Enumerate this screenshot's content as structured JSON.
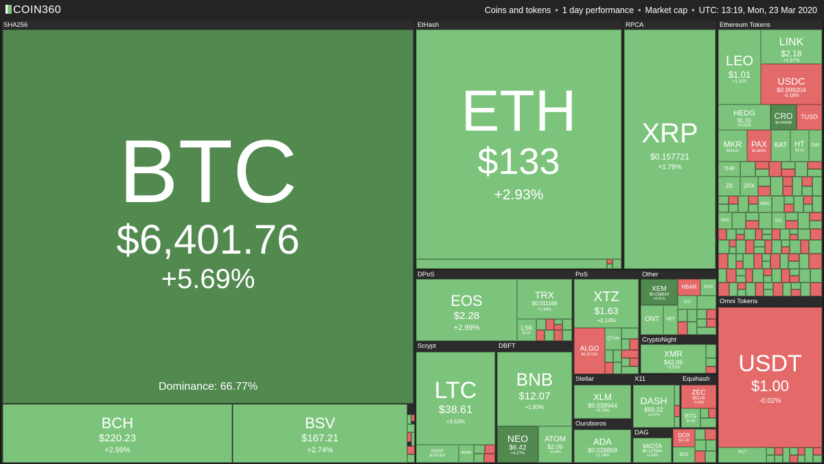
{
  "header": {
    "logo": "COIN360",
    "dataset": "Coins and tokens",
    "period": "1 day performance",
    "metric": "Market cap",
    "time": "UTC: 13:19, Mon, 23 Mar 2020"
  },
  "groups": {
    "sha256": "SHA256",
    "ethash": "EtHash",
    "rpca": "RPCA",
    "ethereum_tokens": "Ethereum Tokens",
    "dpos": "DPoS",
    "pos": "PoS",
    "other": "Other",
    "cryptonight": "CryptoNight",
    "scrypt": "Scrypt",
    "dbft": "DBFT",
    "stellar": "Stellar",
    "x11": "X11",
    "equihash": "Equihash",
    "ouroboros": "Ouroboros",
    "dag": "DAG",
    "omni_tokens": "Omni Tokens"
  },
  "coins": {
    "btc": {
      "symbol": "BTC",
      "price": "$6,401.76",
      "change": "+5.69%",
      "dominance": "Dominance: 66.77%"
    },
    "bch": {
      "symbol": "BCH",
      "price": "$220.23",
      "change": "+2.99%"
    },
    "bsv": {
      "symbol": "BSV",
      "price": "$167.21",
      "change": "+2.74%"
    },
    "eth": {
      "symbol": "ETH",
      "price": "$133",
      "change": "+2.93%"
    },
    "xrp": {
      "symbol": "XRP",
      "price": "$0.157721",
      "change": "+1.79%"
    },
    "leo": {
      "symbol": "LEO",
      "price": "$1.01",
      "change": "+1.11%"
    },
    "link": {
      "symbol": "LINK",
      "price": "$2.18",
      "change": "+1.57%"
    },
    "usdc": {
      "symbol": "USDC",
      "price": "$0.999204",
      "change": "-0.18%"
    },
    "hedg": {
      "symbol": "HEDG",
      "price": "$1.55",
      "change": "+4.02%"
    },
    "cro": {
      "symbol": "CRO",
      "price": "$0.040598",
      "change": ""
    },
    "tusd": {
      "symbol": "TUSD",
      "price": "",
      "change": ""
    },
    "mkr": {
      "symbol": "MKR",
      "price": "$304.62",
      "change": ""
    },
    "pax": {
      "symbol": "PAX",
      "price": "$0.99541",
      "change": ""
    },
    "bat": {
      "symbol": "BAT",
      "price": "",
      "change": ""
    },
    "ht": {
      "symbol": "HT",
      "price": "$3.31",
      "change": ""
    },
    "dai": {
      "symbol": "DAI",
      "price": "",
      "change": ""
    },
    "thr": {
      "symbol": "THR",
      "price": "",
      "change": ""
    },
    "zb": {
      "symbol": "ZB",
      "price": "",
      "change": ""
    },
    "zrx": {
      "symbol": "ZRX",
      "price": "",
      "change": ""
    },
    "omg": {
      "symbol": "OMG",
      "price": "",
      "change": ""
    },
    "dx": {
      "symbol": "DX",
      "price": "",
      "change": ""
    },
    "snx": {
      "symbol": "SNX",
      "price": "",
      "change": ""
    },
    "eos": {
      "symbol": "EOS",
      "price": "$2.28",
      "change": "+2.99%"
    },
    "trx": {
      "symbol": "TRX",
      "price": "$0.011168",
      "change": "+1.94%"
    },
    "lsk": {
      "symbol": "LSK",
      "price": "$1.07",
      "change": ""
    },
    "xtz": {
      "symbol": "XTZ",
      "price": "$1.63",
      "change": "+0.14%"
    },
    "algo": {
      "symbol": "ALGO",
      "price": "$0.157203",
      "change": ""
    },
    "atom_small": {
      "symbol": "QTUM",
      "price": "",
      "change": ""
    },
    "xem": {
      "symbol": "XEM",
      "price": "$0.038924",
      "change": "+9.31%"
    },
    "hbar": {
      "symbol": "HBAR",
      "price": "",
      "change": ""
    },
    "rvn": {
      "symbol": "RVN",
      "price": "",
      "change": ""
    },
    "ont": {
      "symbol": "ONT",
      "price": "",
      "change": ""
    },
    "vet": {
      "symbol": "VET",
      "price": "",
      "change": ""
    },
    "icx": {
      "symbol": "ICX",
      "price": "",
      "change": ""
    },
    "xmr": {
      "symbol": "XMR",
      "price": "$42.06",
      "change": "+3.52%"
    },
    "ltc": {
      "symbol": "LTC",
      "price": "$38.61",
      "change": "+3.63%"
    },
    "doge": {
      "symbol": "DOGE",
      "price": "$0.001822",
      "change": ""
    },
    "mona": {
      "symbol": "MONA",
      "price": "",
      "change": ""
    },
    "bnb": {
      "symbol": "BNB",
      "price": "$12.07",
      "change": "+1.83%"
    },
    "neo": {
      "symbol": "NEO",
      "price": "$6.42",
      "change": "+4.27%"
    },
    "atom": {
      "symbol": "ATOM",
      "price": "$2.06",
      "change": "+0.09%"
    },
    "xlm": {
      "symbol": "XLM",
      "price": "$0.038944",
      "change": "+0.76%"
    },
    "dash": {
      "symbol": "DASH",
      "price": "$69.22",
      "change": "+2.67%"
    },
    "zec": {
      "symbol": "ZEC",
      "price": "$52.05",
      "change": "-0.62%"
    },
    "btg": {
      "symbol": "BTG",
      "price": "$7.38",
      "change": ""
    },
    "ada": {
      "symbol": "ADA",
      "price": "$0.028869",
      "change": "+1.24%"
    },
    "miota": {
      "symbol": "MIOTA",
      "price": "$0.127664",
      "change": "+1.93%"
    },
    "dcr": {
      "symbol": "DCR",
      "price": "$11.28",
      "change": ""
    },
    "bcd": {
      "symbol": "BCD",
      "price": "",
      "change": ""
    },
    "usdt": {
      "symbol": "USDT",
      "price": "$1.00",
      "change": "-0.02%"
    },
    "nut": {
      "symbol": "NUT",
      "price": "",
      "change": ""
    }
  },
  "colors": {
    "up": "#7cc47c",
    "up_dark": "#51894f",
    "down": "#e46a6a",
    "background": "#1a1a1a"
  }
}
